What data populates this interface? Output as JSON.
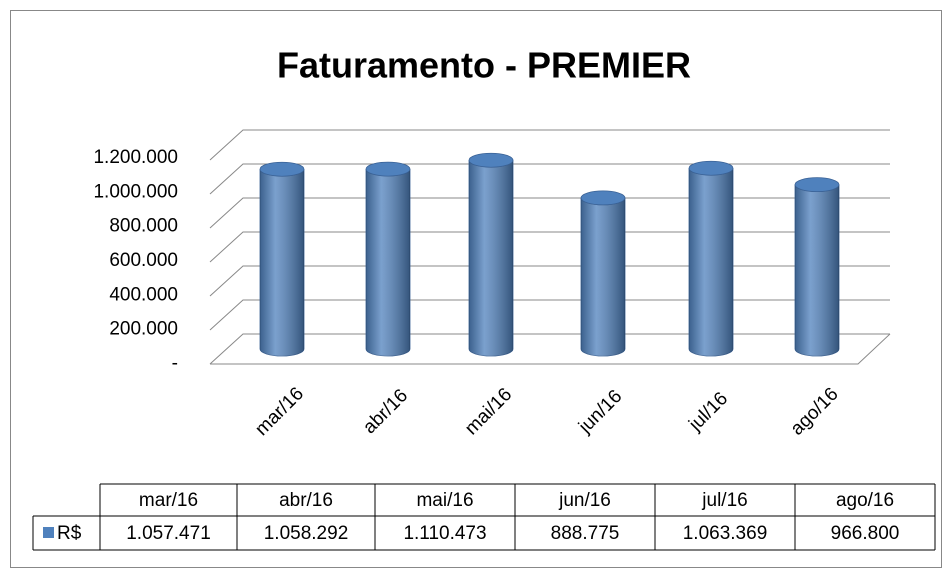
{
  "chart_data": {
    "type": "bar",
    "title": "Faturamento - PREMIER",
    "categories": [
      "mar/16",
      "abr/16",
      "mai/16",
      "jun/16",
      "jul/16",
      "ago/16"
    ],
    "series": [
      {
        "name": "R$",
        "color": "#4f81bd",
        "values": [
          1057471,
          1058292,
          1110473,
          888775,
          1063369,
          966800
        ],
        "value_labels": [
          "1.057.471",
          "1.058.292",
          "1.110.473",
          "888.775",
          "1.063.369",
          "966.800"
        ]
      }
    ],
    "ylim": [
      0,
      1200000
    ],
    "yticks": [
      {
        "value": 0,
        "label": "-"
      },
      {
        "value": 200000,
        "label": "200.000"
      },
      {
        "value": 400000,
        "label": "400.000"
      },
      {
        "value": 600000,
        "label": "600.000"
      },
      {
        "value": 800000,
        "label": "800.000"
      },
      {
        "value": 1000000,
        "label": "1.000.000"
      },
      {
        "value": 1200000,
        "label": "1.200.000"
      }
    ],
    "grid": true,
    "data_table": true
  }
}
